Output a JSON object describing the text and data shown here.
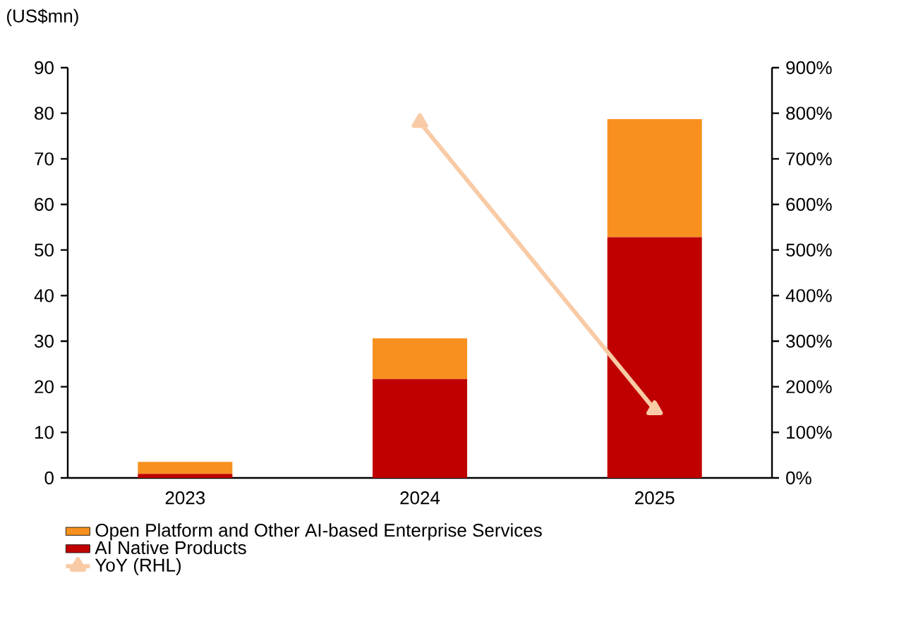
{
  "chart_data": {
    "type": "bar",
    "stacked": true,
    "ylabel": "(US$mn)",
    "categories": [
      "2023",
      "2024",
      "2025"
    ],
    "series": [
      {
        "name": "AI Native Products",
        "color": "#c00000",
        "values": [
          0.9,
          21.7,
          52.8
        ]
      },
      {
        "name": "Open Platform and Other AI-based Enterprise Services",
        "color": "#f7901e",
        "values": [
          2.6,
          8.9,
          25.9
        ]
      },
      {
        "name": "YoY (RHL)",
        "type": "line",
        "axis": "y2",
        "color": "#f8cba6",
        "marker": "triangle",
        "values": [
          null,
          780,
          150
        ]
      }
    ],
    "ylim": [
      0,
      90
    ],
    "yticks": [
      0,
      10,
      20,
      30,
      40,
      50,
      60,
      70,
      80,
      90
    ],
    "y2lim": [
      0,
      900
    ],
    "y2ticks": [
      {
        "value": 0,
        "label": "0%"
      },
      {
        "value": 100,
        "label": "100%"
      },
      {
        "value": 200,
        "label": "200%"
      },
      {
        "value": 300,
        "label": "300%"
      },
      {
        "value": 400,
        "label": "400%"
      },
      {
        "value": 500,
        "label": "500%"
      },
      {
        "value": 600,
        "label": "600%"
      },
      {
        "value": 700,
        "label": "700%"
      },
      {
        "value": 800,
        "label": "800%"
      },
      {
        "value": 900,
        "label": "900%"
      }
    ],
    "legend": "bottom"
  }
}
